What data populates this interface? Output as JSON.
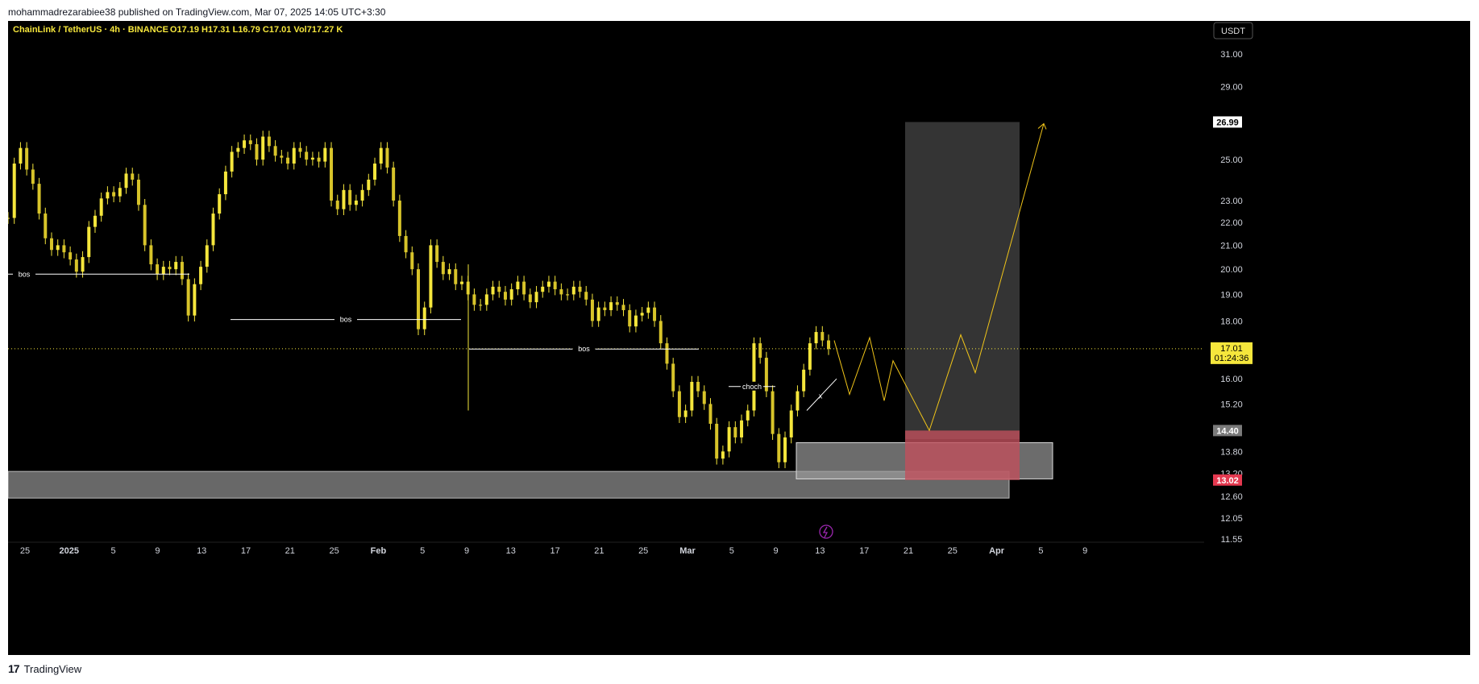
{
  "header": {
    "publish_line": "mohammadrezarabiee38 published on TradingView.com, Mar 07, 2025 14:05 UTC+3:30"
  },
  "footer": {
    "brand": "TradingView",
    "logo_icon": "tradingview-logo-icon"
  },
  "colors": {
    "background": "#000000",
    "candle": "#f5e63c",
    "projection": "#f0c419",
    "zone": "#8a8a8a",
    "stop": "#c0505c",
    "target_box": "#3a3a3a",
    "last_price_bg": "#f5e63c"
  },
  "chart_data": {
    "type": "candlestick",
    "symbol_line": {
      "pair": "ChainLink / TetherUS · 4h · BINANCE",
      "open": "O17.19",
      "high": "H17.31",
      "low": "L16.79",
      "close": "C17.01",
      "volume": "Vol717.27 K"
    },
    "currency_button": "USDT",
    "y_axis": {
      "scale": "log",
      "ticks": [
        "31.00",
        "29.00",
        "25.00",
        "23.00",
        "22.00",
        "21.00",
        "20.00",
        "19.00",
        "18.00",
        "16.00",
        "15.20",
        "13.80",
        "13.20",
        "12.60",
        "12.05",
        "11.55"
      ]
    },
    "x_axis": {
      "ticks": [
        "25",
        "2025",
        "5",
        "9",
        "13",
        "17",
        "21",
        "25",
        "Feb",
        "5",
        "9",
        "13",
        "17",
        "21",
        "25",
        "Mar",
        "5",
        "9",
        "13",
        "17",
        "21",
        "25",
        "Apr",
        "5",
        "9"
      ]
    },
    "price_labels": {
      "target": "26.99",
      "last_price": "17.01",
      "countdown": "01:24:36",
      "entry": "14.40",
      "stop": "13.02"
    },
    "close_series": [
      22.2,
      24.8,
      25.6,
      24.5,
      23.8,
      22.4,
      21.3,
      20.8,
      21.0,
      20.7,
      20.4,
      19.9,
      20.5,
      21.8,
      22.3,
      23.1,
      23.4,
      23.2,
      23.6,
      24.3,
      24.0,
      22.8,
      21.0,
      20.2,
      19.8,
      20.1,
      20.0,
      20.3,
      19.6,
      18.2,
      19.4,
      20.1,
      21.0,
      22.4,
      23.3,
      24.4,
      25.4,
      25.6,
      26.0,
      25.8,
      25.0,
      26.2,
      25.7,
      25.2,
      25.1,
      24.8,
      25.6,
      25.4,
      25.0,
      25.1,
      24.9,
      25.6,
      23.0,
      22.6,
      23.5,
      22.8,
      23.0,
      23.5,
      24.0,
      24.8,
      25.6,
      24.6,
      23.0,
      21.4,
      20.7,
      20.0,
      17.7,
      18.5,
      21.0,
      20.3,
      19.8,
      20.0,
      19.4,
      19.5,
      19.0,
      18.6,
      18.6,
      19.0,
      19.3,
      19.1,
      18.8,
      19.2,
      19.5,
      19.0,
      18.7,
      19.1,
      19.3,
      19.5,
      19.2,
      19.0,
      19.0,
      19.3,
      19.1,
      18.8,
      18.0,
      18.5,
      18.4,
      18.7,
      18.6,
      18.4,
      17.8,
      18.2,
      18.3,
      18.5,
      18.0,
      17.2,
      16.5,
      15.6,
      14.8,
      15.0,
      15.9,
      15.6,
      15.2,
      14.6,
      13.6,
      13.8,
      14.5,
      14.2,
      14.7,
      15.0,
      17.2,
      16.7,
      15.6,
      14.3,
      13.5,
      14.2,
      15.0,
      15.6,
      16.3,
      17.2,
      17.6,
      17.3,
      17.0
    ],
    "annotations": {
      "labels": [
        "bos",
        "bos",
        "bos",
        "choch",
        "x"
      ],
      "levels": [
        19.8,
        18.05,
        17.0,
        15.75
      ],
      "demand_zone_low": [
        12.55,
        13.25
      ],
      "demand_zone_high": [
        13.05,
        14.05
      ],
      "target_box": [
        14.15,
        26.99
      ],
      "stop_box": [
        13.02,
        14.4
      ],
      "projection_path": [
        17.3,
        15.5,
        17.4,
        15.3,
        16.6,
        14.4,
        17.5,
        16.2,
        26.9
      ]
    }
  }
}
